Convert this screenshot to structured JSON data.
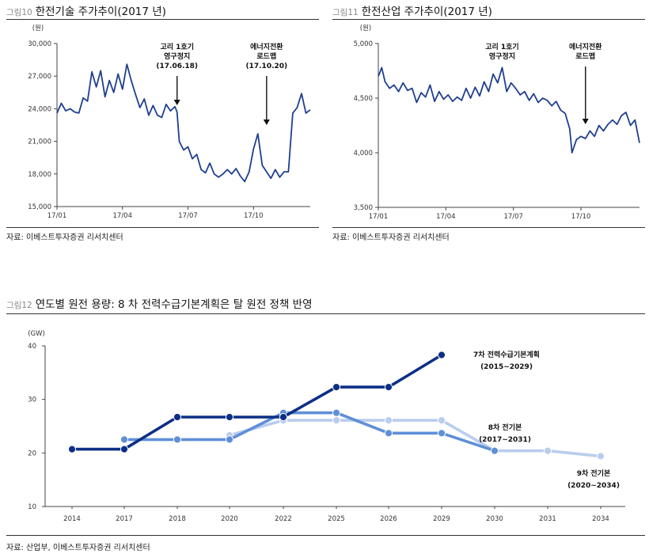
{
  "colors": {
    "price_line": "#1f3f8f",
    "plan7": "#0d2f85",
    "plan8": "#5f8fd6",
    "plan9": "#b9cdee",
    "axis": "#444444",
    "figure_label": "#8a8a8a"
  },
  "charts": {
    "left": {
      "figure_label": "그림10",
      "title": "한전기술 주가추이(2017 년)",
      "source": "자료: 이베스트투자증권 리서치센터"
    },
    "right": {
      "figure_label": "그림11",
      "title": "한전산업 주가추이(2017 년)",
      "source": "자료: 이베스트투자증권 리서치센터"
    },
    "bottom": {
      "figure_label": "그림12",
      "title": "연도별 원전 용량: 8 차 전력수급기본계획은 탈 원전 정책 반영",
      "source": "자료: 산업부, 이베스트투자증권 리서치센터"
    }
  },
  "chart_data": [
    {
      "id": "kepco-enc",
      "type": "line",
      "title": "한전기술 주가추이(2017 년)",
      "unit": "(원)",
      "ylim": [
        15000,
        30000
      ],
      "yticks": [
        15000,
        18000,
        21000,
        24000,
        27000,
        30000
      ],
      "ytick_labels": [
        "15,000",
        "18,000",
        "21,000",
        "24,000",
        "27,000",
        "30,000"
      ],
      "xticks": [
        "17/01",
        "17/04",
        "17/07",
        "17/10"
      ],
      "x_range_months": [
        0,
        11.6
      ],
      "xtick_positions_months": [
        0,
        3,
        6,
        9
      ],
      "series": [
        {
          "name": "한전기술",
          "x_months": [
            0,
            0.2,
            0.4,
            0.6,
            0.8,
            1,
            1.2,
            1.4,
            1.6,
            1.8,
            2,
            2.2,
            2.4,
            2.6,
            2.8,
            3,
            3.2,
            3.4,
            3.6,
            3.8,
            4,
            4.2,
            4.4,
            4.6,
            4.8,
            5,
            5.2,
            5.4,
            5.5,
            5.6,
            5.8,
            6,
            6.2,
            6.4,
            6.6,
            6.8,
            7,
            7.2,
            7.4,
            7.6,
            7.8,
            8,
            8.2,
            8.4,
            8.6,
            8.8,
            9,
            9.2,
            9.4,
            9.6,
            9.8,
            10,
            10.2,
            10.4,
            10.6,
            10.8,
            11,
            11.2,
            11.4,
            11.6
          ],
          "values": [
            23600,
            24500,
            23800,
            24000,
            23700,
            23600,
            25000,
            24700,
            27400,
            26000,
            27500,
            25100,
            26600,
            25500,
            27200,
            25800,
            28100,
            26600,
            25300,
            24100,
            24900,
            23400,
            24300,
            23400,
            23200,
            24400,
            23800,
            24200,
            23700,
            21000,
            20200,
            20500,
            19400,
            19800,
            18400,
            18100,
            19000,
            18000,
            17700,
            18000,
            18400,
            18000,
            18500,
            17800,
            17300,
            18200,
            20300,
            21700,
            18800,
            18200,
            17600,
            18400,
            17700,
            18200,
            18200,
            23600,
            24100,
            25400,
            23600,
            23900
          ]
        }
      ],
      "annotations": [
        {
          "lines": [
            "고리 1호기",
            "영구정지",
            "(17.06.18)"
          ],
          "x_month": 5.5
        },
        {
          "lines": [
            "에너지전환",
            "로드맵",
            "(17.10.20)"
          ],
          "x_month": 9.6
        }
      ]
    },
    {
      "id": "kepco-kps",
      "type": "line",
      "title": "한전산업 주가추이(2017 년)",
      "unit": "(원)",
      "ylim": [
        3500,
        5000
      ],
      "yticks": [
        3500,
        4000,
        4500,
        5000
      ],
      "ytick_labels": [
        "3,500",
        "4,000",
        "4,500",
        "5,000"
      ],
      "xticks": [
        "17/01",
        "17/04",
        "17/07",
        "17/10"
      ],
      "x_range_months": [
        0,
        11.6
      ],
      "xtick_positions_months": [
        0,
        3,
        6,
        9
      ],
      "series": [
        {
          "name": "한전산업",
          "x_months": [
            0,
            0.15,
            0.3,
            0.5,
            0.7,
            0.9,
            1.1,
            1.3,
            1.5,
            1.7,
            1.9,
            2.1,
            2.3,
            2.5,
            2.7,
            2.9,
            3.1,
            3.3,
            3.5,
            3.7,
            3.9,
            4.1,
            4.3,
            4.5,
            4.7,
            4.9,
            5.1,
            5.3,
            5.5,
            5.7,
            5.9,
            6.1,
            6.3,
            6.5,
            6.7,
            6.9,
            7.1,
            7.3,
            7.5,
            7.7,
            7.9,
            8.1,
            8.3,
            8.5,
            8.6,
            8.8,
            9,
            9.2,
            9.4,
            9.6,
            9.8,
            10,
            10.2,
            10.4,
            10.6,
            10.8,
            11,
            11.2,
            11.4,
            11.6
          ],
          "values": [
            4700,
            4780,
            4650,
            4590,
            4620,
            4560,
            4640,
            4570,
            4590,
            4460,
            4550,
            4510,
            4620,
            4470,
            4560,
            4490,
            4530,
            4470,
            4510,
            4480,
            4590,
            4500,
            4600,
            4520,
            4650,
            4560,
            4720,
            4640,
            4780,
            4560,
            4640,
            4590,
            4530,
            4560,
            4480,
            4540,
            4460,
            4500,
            4480,
            4430,
            4470,
            4390,
            4360,
            4220,
            4000,
            4120,
            4150,
            4130,
            4200,
            4150,
            4250,
            4200,
            4260,
            4300,
            4260,
            4340,
            4370,
            4250,
            4300,
            4090
          ]
        }
      ],
      "annotations": [
        {
          "lines": [
            "고리 1호기",
            "영구정지"
          ],
          "x_month": 5.5
        },
        {
          "lines": [
            "에너지전환",
            "로드맵"
          ],
          "x_month": 9.2
        }
      ]
    },
    {
      "id": "nuclear-capacity",
      "type": "line",
      "title": "연도별 원전 용량: 8 차 전력수급기본계획은 탈 원전 정책 반영",
      "unit": "(GW)",
      "ylim": [
        10,
        40
      ],
      "yticks": [
        10,
        20,
        30,
        40
      ],
      "categories": [
        "2014",
        "2017",
        "2018",
        "2020",
        "2022",
        "2025",
        "2026",
        "2029",
        "2030",
        "2031",
        "2034"
      ],
      "series": [
        {
          "name": "7차 전력수급기본계획",
          "period": "(2015~2029)",
          "color_key": "plan7",
          "values": [
            20.7,
            20.7,
            26.7,
            26.7,
            26.7,
            32.3,
            32.3,
            38.3,
            null,
            null,
            null
          ]
        },
        {
          "name": "8차 전기본",
          "period": "(2017~2031)",
          "color_key": "plan8",
          "values": [
            null,
            22.5,
            22.5,
            22.5,
            27.5,
            27.5,
            23.7,
            23.7,
            20.4,
            null,
            null
          ]
        },
        {
          "name": "9차 전기본",
          "period": "(2020~2034)",
          "color_key": "plan9",
          "values": [
            null,
            null,
            null,
            23.3,
            26.1,
            26.1,
            26.1,
            26.1,
            20.4,
            20.4,
            19.4
          ]
        }
      ]
    }
  ]
}
